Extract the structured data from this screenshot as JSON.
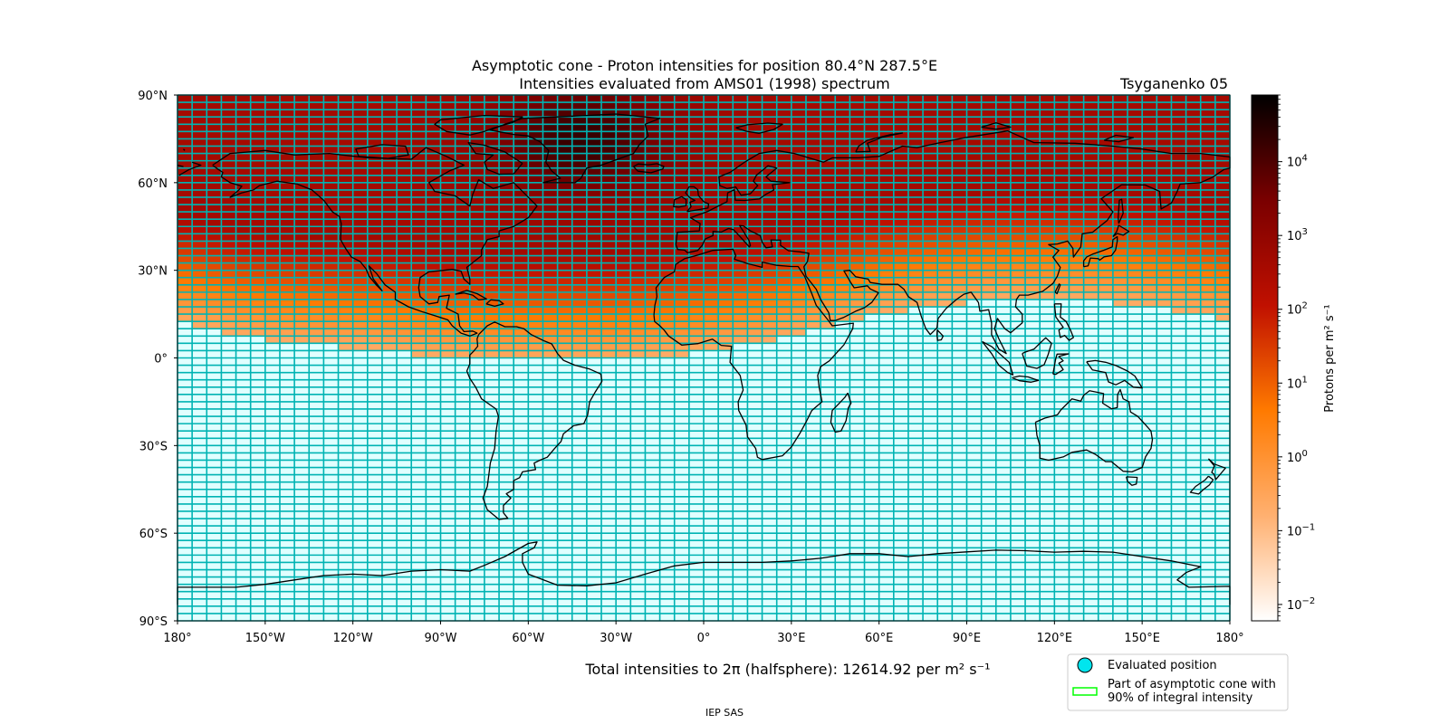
{
  "chart_data": {
    "type": "heatmap",
    "title": "Asymptotic cone - Proton intensities for position 80.4°N 287.5°E",
    "subtitle": "Intensities evaluated from AMS01 (1998) spectrum",
    "model_label": "Tsyganenko 05",
    "x_ticks": [
      {
        "value": -180,
        "label": "180°"
      },
      {
        "value": -150,
        "label": "150°W"
      },
      {
        "value": -120,
        "label": "120°W"
      },
      {
        "value": -90,
        "label": "90°W"
      },
      {
        "value": -60,
        "label": "60°W"
      },
      {
        "value": -30,
        "label": "30°W"
      },
      {
        "value": 0,
        "label": "0°"
      },
      {
        "value": 30,
        "label": "30°E"
      },
      {
        "value": 60,
        "label": "60°E"
      },
      {
        "value": 90,
        "label": "90°E"
      },
      {
        "value": 120,
        "label": "120°E"
      },
      {
        "value": 150,
        "label": "150°E"
      },
      {
        "value": 180,
        "label": "180°"
      }
    ],
    "y_ticks": [
      {
        "value": 90,
        "label": "90°N"
      },
      {
        "value": 60,
        "label": "60°N"
      },
      {
        "value": 30,
        "label": "30°N"
      },
      {
        "value": 0,
        "label": "0°"
      },
      {
        "value": -30,
        "label": "30°S"
      },
      {
        "value": -60,
        "label": "60°S"
      },
      {
        "value": -90,
        "label": "90°S"
      }
    ],
    "xlim": [
      -180,
      180
    ],
    "ylim": [
      -90,
      90
    ],
    "grid_cell_deg": {
      "lon": 5,
      "lat": 2.5
    },
    "colorbar": {
      "label": "Protons per m² s⁻¹",
      "scale": "log",
      "range": [
        0.006,
        80000
      ],
      "ticks": [
        {
          "value": 0.01,
          "base": "10",
          "exp": "−2"
        },
        {
          "value": 0.1,
          "base": "10",
          "exp": "−1"
        },
        {
          "value": 1,
          "base": "10",
          "exp": "0"
        },
        {
          "value": 10,
          "base": "10",
          "exp": "1"
        },
        {
          "value": 100,
          "base": "10",
          "exp": "2"
        },
        {
          "value": 1000,
          "base": "10",
          "exp": "3"
        },
        {
          "value": 10000,
          "base": "10",
          "exp": "4"
        }
      ],
      "colors": [
        "#ffffff",
        "#ffb070",
        "#ff7a00",
        "#c01000",
        "#7a0000",
        "#000000"
      ]
    },
    "intensity_model": {
      "boundary_lat_points": [
        [
          -180,
          12.5
        ],
        [
          -160,
          7.5
        ],
        [
          -140,
          5
        ],
        [
          -110,
          2.5
        ],
        [
          -90,
          0
        ],
        [
          -60,
          -1
        ],
        [
          -30,
          -1
        ],
        [
          0,
          2
        ],
        [
          20,
          5
        ],
        [
          40,
          10
        ],
        [
          60,
          15
        ],
        [
          80,
          18
        ],
        [
          100,
          20
        ],
        [
          130,
          20
        ],
        [
          150,
          18
        ],
        [
          180,
          13
        ]
      ],
      "peak": {
        "lon": -42,
        "lat": 75,
        "value": 20000
      },
      "north_value": 400
    },
    "footer_main": "Total intensities to 2π (halfsphere): 12614.92 per m² s⁻¹",
    "legend": [
      {
        "label": "Evaluated position",
        "symbol": "circle",
        "color": "#00e5ee"
      },
      {
        "label": "Part of asymptotic cone with",
        "label2": "90% of integral intensity",
        "symbol": "rect",
        "color": "#00ff00"
      }
    ]
  },
  "footer_credit": "IEP SAS",
  "colors": {
    "grid_line": "#00b3b3",
    "land_outline": "#000000",
    "evaluated_position": "#00e5ee"
  }
}
